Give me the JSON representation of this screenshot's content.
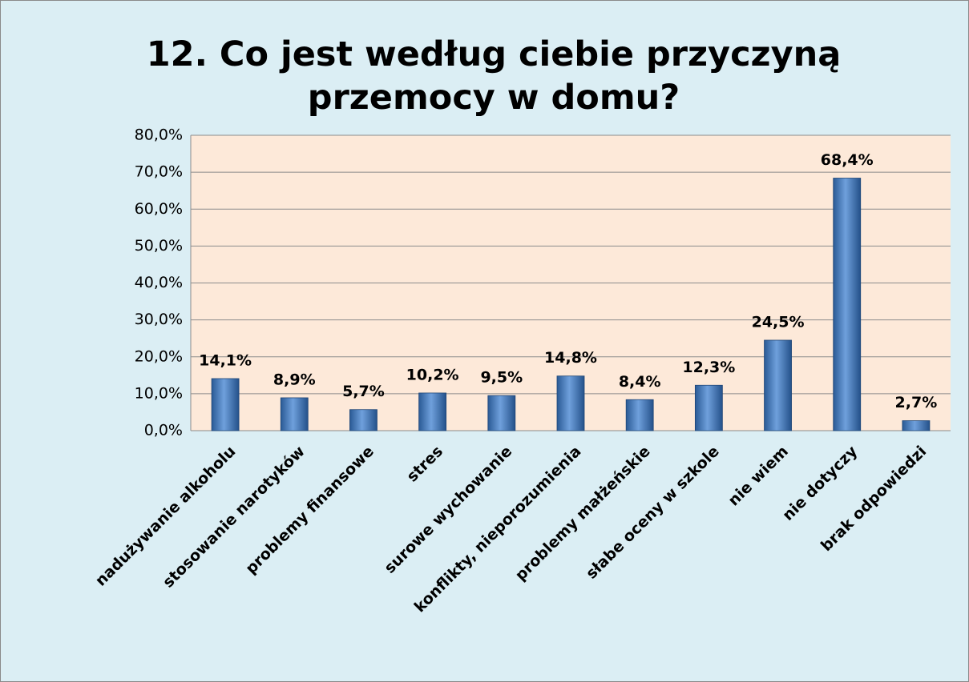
{
  "chart_data": {
    "type": "bar",
    "title": "12. Co jest według ciebie przyczyną przemocy w domu?",
    "categories": [
      "nadużywanie alkoholu",
      "stosowanie narotyków",
      "problemy finansowe",
      "stres",
      "surowe wychowanie",
      "konflikty, nieporozumienia",
      "problemy małżeńskie",
      "słabe oceny w szkole",
      "nie wiem",
      "nie dotyczy",
      "brak odpowiedzi"
    ],
    "values": [
      14.1,
      8.9,
      5.7,
      10.2,
      9.5,
      14.8,
      8.4,
      12.3,
      24.5,
      68.4,
      2.7
    ],
    "value_labels": [
      "14,1%",
      "8,9%",
      "5,7%",
      "10,2%",
      "9,5%",
      "14,8%",
      "8,4%",
      "12,3%",
      "24,5%",
      "68,4%",
      "2,7%"
    ],
    "color": "#4f81bd",
    "ylim": [
      0,
      80
    ],
    "yticks": [
      {
        "value": 0,
        "label": "0,0%"
      },
      {
        "value": 10,
        "label": "10,0%"
      },
      {
        "value": 20,
        "label": "20,0%"
      },
      {
        "value": 30,
        "label": "30,0%"
      },
      {
        "value": 40,
        "label": "40,0%"
      },
      {
        "value": 50,
        "label": "50,0%"
      },
      {
        "value": 60,
        "label": "60,0%"
      },
      {
        "value": 70,
        "label": "70,0%"
      },
      {
        "value": 80,
        "label": "80,0%"
      }
    ],
    "grid": true
  }
}
